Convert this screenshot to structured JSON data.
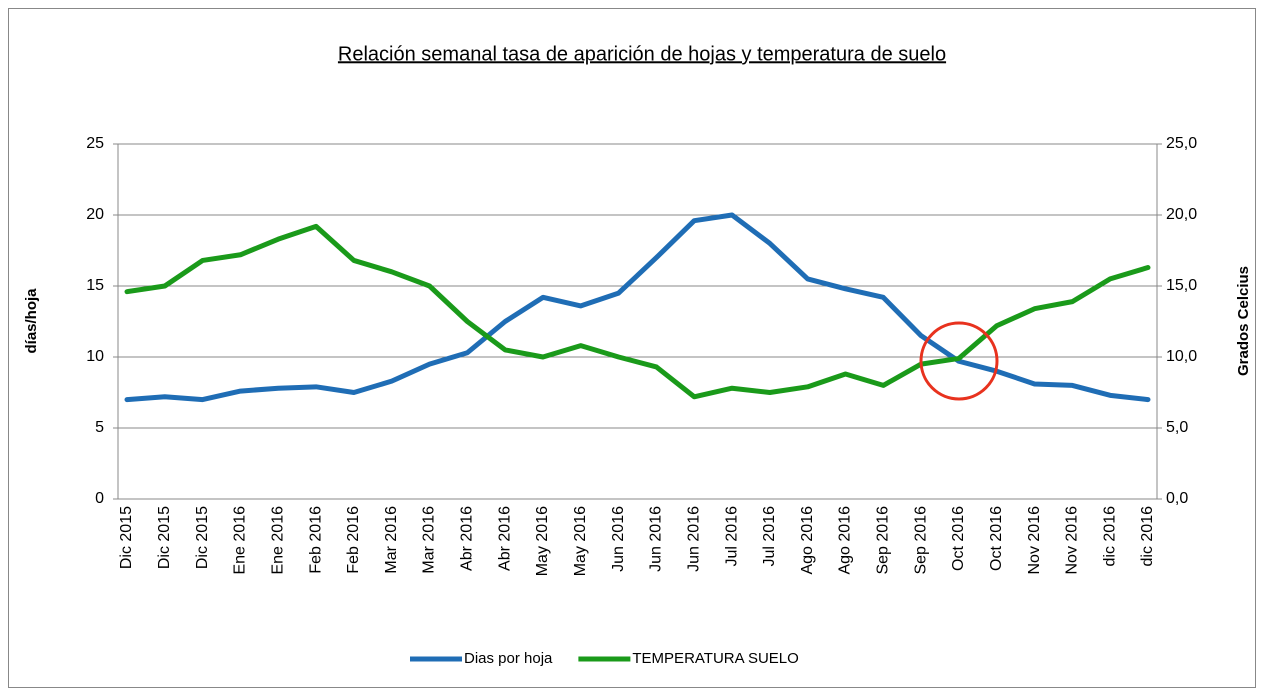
{
  "chart_data": {
    "type": "line",
    "title": "Relación semanal tasa de aparición de hojas y temperatura de suelo",
    "ylabel": "días/hoja",
    "y2label": "Grados Celcius",
    "categories": [
      "Dic 2015",
      "Dic 2015",
      "Dic 2015",
      "Ene 2016",
      "Ene 2016",
      "Feb 2016",
      "Feb 2016",
      "Mar 2016",
      "Mar 2016",
      "Abr 2016",
      "Abr 2016",
      "May 2016",
      "May 2016",
      "Jun 2016",
      "Jun 2016",
      "Jun 2016",
      "Jul 2016",
      "Jul 2016",
      "Ago 2016",
      "Ago 2016",
      "Sep 2016",
      "Sep 2016",
      "Oct 2016",
      "Oct 2016",
      "Nov 2016",
      "Nov 2016",
      "dic 2016",
      "dic 2016"
    ],
    "series": [
      {
        "name": "Dias por hoja",
        "color": "#1f6db5",
        "axis": "y",
        "values": [
          7.0,
          7.2,
          7.0,
          7.6,
          7.8,
          7.9,
          7.5,
          8.3,
          9.5,
          10.3,
          12.5,
          14.2,
          13.6,
          14.5,
          17.0,
          19.6,
          20.0,
          18.0,
          15.5,
          14.8,
          14.2,
          11.5,
          9.7,
          9.0,
          8.1,
          8.0,
          7.3,
          7.0
        ]
      },
      {
        "name": "TEMPERATURA SUELO",
        "color": "#1a9a1a",
        "axis": "y2",
        "values": [
          14.6,
          15.0,
          16.8,
          17.2,
          18.3,
          19.2,
          16.8,
          16.0,
          15.0,
          12.5,
          10.5,
          10.0,
          10.8,
          10.0,
          9.3,
          7.2,
          7.8,
          7.5,
          7.9,
          8.8,
          8.0,
          9.5,
          9.9,
          12.2,
          13.4,
          13.9,
          15.5,
          16.3
        ]
      }
    ],
    "ylim": [
      0,
      25
    ],
    "yticks": [
      0,
      5,
      10,
      15,
      20,
      25
    ],
    "y2lim": [
      0,
      25
    ],
    "y2ticks": [
      {
        "value": 0,
        "label": "0,0"
      },
      {
        "value": 5,
        "label": "5,0"
      },
      {
        "value": 10,
        "label": "10,0"
      },
      {
        "value": 15,
        "label": "15,0"
      },
      {
        "value": 20,
        "label": "20,0"
      },
      {
        "value": 25,
        "label": "25,0"
      }
    ],
    "grid": true,
    "legend": "bottom"
  }
}
